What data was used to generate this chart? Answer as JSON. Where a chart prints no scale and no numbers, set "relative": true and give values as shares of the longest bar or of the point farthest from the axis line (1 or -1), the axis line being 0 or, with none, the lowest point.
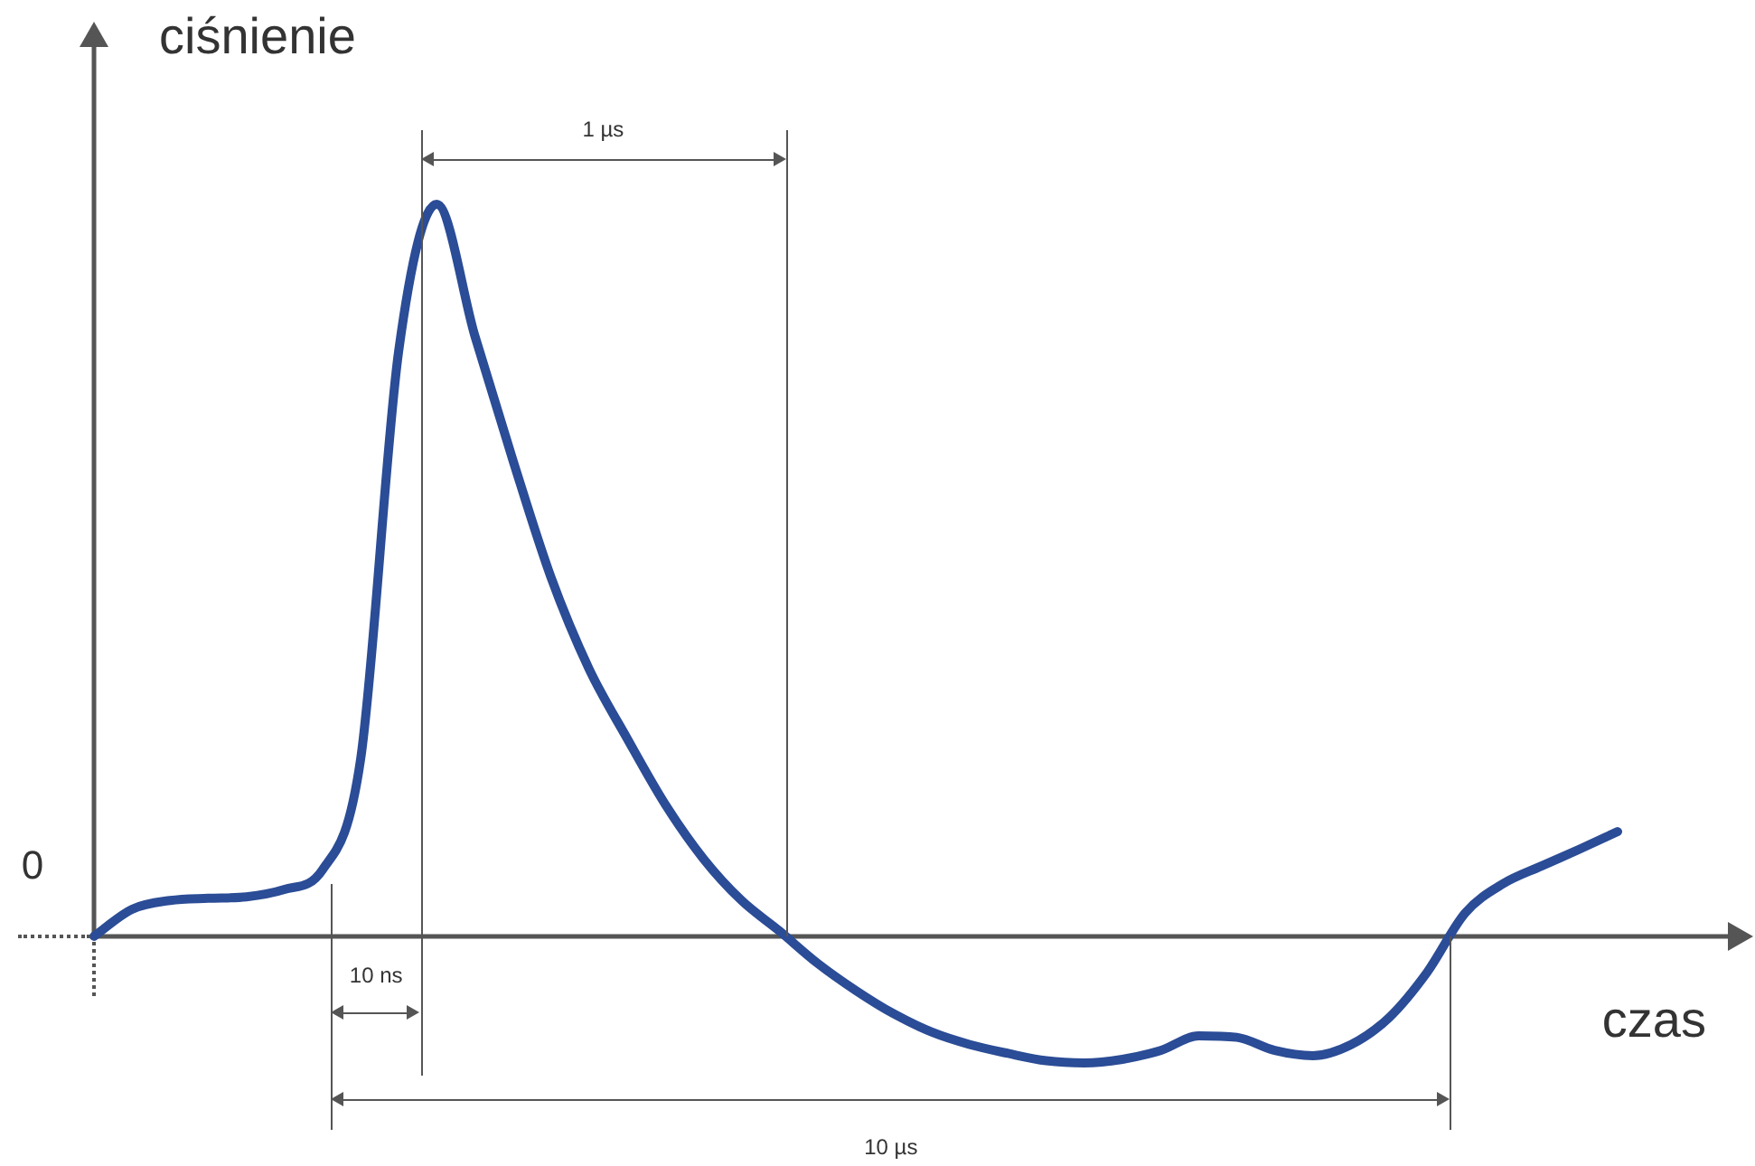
{
  "chart_data": {
    "type": "line",
    "relative": true,
    "xlabel": "czas",
    "ylabel": "ciśnienie",
    "categories": [
      null,
      null,
      null,
      null,
      null,
      null,
      null,
      null,
      null,
      null,
      null,
      null,
      null,
      null,
      null,
      null,
      null,
      null,
      null,
      null,
      null,
      null,
      null,
      null,
      null,
      null,
      null,
      null,
      null,
      null,
      null,
      null,
      null,
      null,
      null,
      null,
      null,
      null,
      null,
      null,
      null
    ],
    "series": [
      {
        "color": "#2b4c96",
        "values": [
          0,
          0.037,
          0.049,
          0.052,
          0.054,
          0.064,
          0.091,
          0.242,
          0.8,
          1,
          0.82,
          0.65,
          0.49,
          0.365,
          0.27,
          0.18,
          0.106,
          0.049,
          0.007,
          -0.037,
          -0.074,
          -0.106,
          -0.131,
          -0.148,
          -0.16,
          -0.17,
          -0.173,
          -0.168,
          -0.156,
          -0.136,
          -0.138,
          -0.156,
          -0.163,
          -0.148,
          -0.111,
          -0.049,
          0.032,
          0.072,
          0.096,
          0.119,
          0.143
        ]
      }
    ],
    "annotations": [
      "0",
      "1 µs",
      "10 ns",
      "10 µs"
    ],
    "legend": false,
    "grid": false,
    "marker": "none",
    "line_style": "solid"
  }
}
